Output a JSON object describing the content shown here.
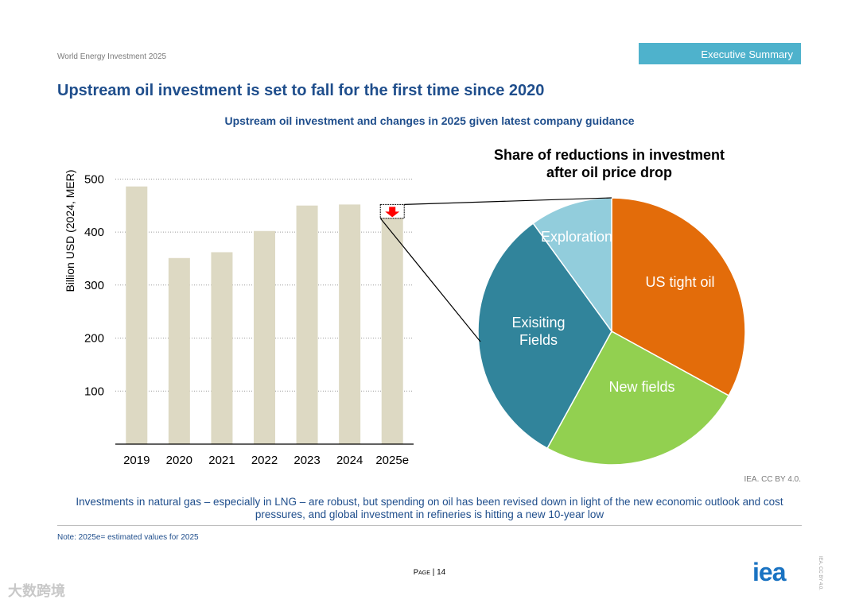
{
  "header": {
    "report_name": "World Energy Investment 2025",
    "section_badge": "Executive Summary"
  },
  "headline": "Upstream oil investment is set to fall for the first time since 2020",
  "figure_title": "Upstream oil investment and changes in 2025 given latest company guidance",
  "chart_data": [
    {
      "type": "bar",
      "title": "",
      "ylabel": "Billion USD (2024, MER)",
      "xlabel": "",
      "categories": [
        "2019",
        "2020",
        "2021",
        "2022",
        "2023",
        "2024",
        "2025e"
      ],
      "values": [
        486,
        351,
        362,
        402,
        450,
        452,
        426
      ],
      "yticks": [
        100,
        200,
        300,
        400,
        500
      ],
      "ylim": [
        0,
        520
      ],
      "grid": true,
      "highlight_reduction": {
        "category": "2025e",
        "from": 452,
        "to": 426
      }
    },
    {
      "type": "pie",
      "title": "Share of reductions in investment after oil price drop",
      "title_lines": [
        "Share of reductions in investment",
        "after oil price drop"
      ],
      "slices": [
        {
          "label": "US tight oil",
          "value": 33,
          "color": "#e36c0a"
        },
        {
          "label": "New fields",
          "value": 25,
          "color": "#92d050"
        },
        {
          "label": "Exisiting Fields",
          "label_lines": [
            "Exisiting",
            "Fields"
          ],
          "value": 32,
          "color": "#31849b"
        },
        {
          "label": "Exploration",
          "value": 10,
          "color": "#92cddc"
        }
      ]
    }
  ],
  "colors": {
    "bar": "#ddd9c3",
    "arrow": "#ff0000",
    "title_blue": "#1f4e8c",
    "badge": "#4eb2cc"
  },
  "attribution": "IEA. CC BY 4.0.",
  "summary": "Investments in natural gas – especially in LNG – are robust, but spending on oil has been revised down in light of the new economic outlook and cost pressures, and global investment in refineries is hitting a new 10-year low",
  "note": "Note: 2025e= estimated values for 2025",
  "footer": {
    "page_label": "Page",
    "page_number": "| 14",
    "logo_text": "iea",
    "license_vertical": "IEA. CC BY 4.0.",
    "watermark": "大数跨境"
  }
}
